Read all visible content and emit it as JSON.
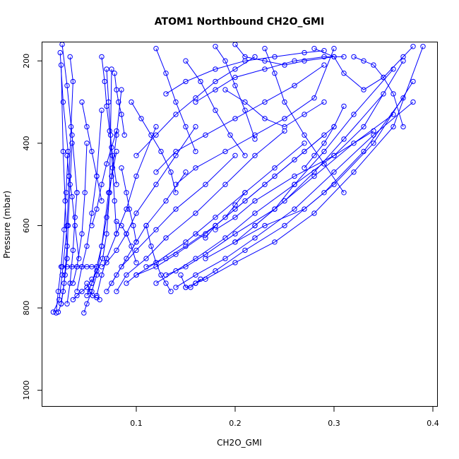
{
  "chart_data": {
    "type": "scatter",
    "title": "ATOM1 Northbound CH2O_GMI",
    "xlabel": "CH2O_GMI",
    "ylabel": "Pressure (mbar)",
    "xlim": [
      0.005,
      0.405
    ],
    "ylim": [
      1040,
      155
    ],
    "y_reversed": true,
    "x_ticks": [
      0.1,
      0.2,
      0.3,
      0.4
    ],
    "x_tick_labels": [
      "0.1",
      "0.2",
      "0.3",
      "0.4"
    ],
    "y_ticks": [
      200,
      400,
      600,
      800,
      1000
    ],
    "y_tick_labels": [
      "200",
      "400",
      "600",
      "800",
      "1000"
    ],
    "grid": false,
    "legend": "none",
    "marker": "open-circle",
    "connected": true,
    "color": "#0000ff",
    "series": [
      {
        "x": [
          0.016,
          0.022,
          0.025,
          0.03,
          0.032,
          0.034,
          0.036,
          0.033
        ],
        "y": [
          810,
          780,
          720,
          600,
          480,
          360,
          250,
          190
        ]
      },
      {
        "x": [
          0.019,
          0.021,
          0.024,
          0.027,
          0.029,
          0.031,
          0.026,
          0.023
        ],
        "y": [
          812,
          760,
          700,
          610,
          520,
          420,
          300,
          180
        ]
      },
      {
        "x": [
          0.021,
          0.024,
          0.027,
          0.03,
          0.028,
          0.026,
          0.024
        ],
        "y": [
          810,
          790,
          740,
          650,
          540,
          420,
          210
        ]
      },
      {
        "x": [
          0.024,
          0.026,
          0.028,
          0.03,
          0.031,
          0.033,
          0.035
        ],
        "y": [
          790,
          760,
          720,
          680,
          600,
          500,
          400
        ]
      },
      {
        "x": [
          0.025,
          0.03,
          0.035,
          0.04,
          0.045,
          0.05,
          0.055,
          0.06
        ],
        "y": [
          700,
          700,
          700,
          700,
          700,
          700,
          700,
          700
        ]
      },
      {
        "x": [
          0.03,
          0.033,
          0.036,
          0.038,
          0.04
        ],
        "y": [
          790,
          740,
          660,
          580,
          520
        ]
      },
      {
        "x": [
          0.036,
          0.04,
          0.045,
          0.048,
          0.05
        ],
        "y": [
          740,
          700,
          620,
          520,
          400
        ]
      },
      {
        "x": [
          0.04,
          0.045,
          0.05,
          0.055,
          0.06,
          0.065
        ],
        "y": [
          760,
          700,
          650,
          570,
          480,
          320
        ]
      },
      {
        "x": [
          0.047,
          0.05,
          0.055,
          0.06,
          0.065,
          0.072,
          0.08
        ],
        "y": [
          812,
          790,
          760,
          720,
          650,
          520,
          420
        ]
      },
      {
        "x": [
          0.05,
          0.055,
          0.06,
          0.065,
          0.07,
          0.075,
          0.08,
          0.085
        ],
        "y": [
          770,
          740,
          700,
          650,
          580,
          480,
          380,
          270
        ]
      },
      {
        "x": [
          0.055,
          0.06,
          0.066,
          0.07,
          0.073,
          0.075
        ],
        "y": [
          740,
          710,
          680,
          620,
          520,
          220
        ]
      },
      {
        "x": [
          0.06,
          0.065,
          0.07,
          0.08,
          0.09,
          0.1,
          0.12
        ],
        "y": [
          770,
          720,
          680,
          620,
          560,
          480,
          360
        ]
      },
      {
        "x": [
          0.065,
          0.07,
          0.08,
          0.09,
          0.1,
          0.12,
          0.14,
          0.16
        ],
        "y": [
          700,
          690,
          660,
          620,
          570,
          500,
          430,
          360
        ]
      },
      {
        "x": [
          0.07,
          0.08,
          0.09,
          0.1,
          0.11,
          0.13,
          0.15
        ],
        "y": [
          760,
          720,
          680,
          640,
          600,
          540,
          470
        ]
      },
      {
        "x": [
          0.075,
          0.085,
          0.1,
          0.12,
          0.14,
          0.17,
          0.2
        ],
        "y": [
          740,
          700,
          660,
          610,
          560,
          500,
          430
        ]
      },
      {
        "x": [
          0.08,
          0.09,
          0.11,
          0.13,
          0.16,
          0.19,
          0.22,
          0.25
        ],
        "y": [
          760,
          720,
          680,
          630,
          570,
          500,
          430,
          370
        ]
      },
      {
        "x": [
          0.09,
          0.1,
          0.12,
          0.15,
          0.18,
          0.21,
          0.24,
          0.27
        ],
        "y": [
          740,
          720,
          690,
          640,
          580,
          520,
          460,
          400
        ]
      },
      {
        "x": [
          0.1,
          0.12,
          0.14,
          0.17,
          0.2,
          0.23,
          0.26,
          0.29
        ],
        "y": [
          720,
          700,
          670,
          620,
          560,
          500,
          440,
          380
        ]
      },
      {
        "x": [
          0.11,
          0.13,
          0.15,
          0.18,
          0.21,
          0.24,
          0.27,
          0.3
        ],
        "y": [
          700,
          680,
          650,
          600,
          540,
          480,
          420,
          360
        ]
      },
      {
        "x": [
          0.12,
          0.14,
          0.16,
          0.19,
          0.22,
          0.26,
          0.3,
          0.34
        ],
        "y": [
          740,
          710,
          680,
          630,
          570,
          500,
          430,
          370
        ]
      },
      {
        "x": [
          0.13,
          0.15,
          0.17,
          0.2,
          0.24,
          0.28,
          0.32,
          0.36
        ],
        "y": [
          720,
          700,
          670,
          620,
          560,
          480,
          400,
          330
        ]
      },
      {
        "x": [
          0.14,
          0.16,
          0.19,
          0.22,
          0.26,
          0.3,
          0.34,
          0.38
        ],
        "y": [
          750,
          720,
          680,
          630,
          560,
          470,
          380,
          300
        ]
      },
      {
        "x": [
          0.15,
          0.17,
          0.2,
          0.24,
          0.28,
          0.32,
          0.36,
          0.39
        ],
        "y": [
          750,
          730,
          690,
          640,
          570,
          470,
          360,
          165
        ]
      },
      {
        "x": [
          0.16,
          0.18,
          0.21,
          0.25,
          0.29,
          0.33,
          0.37
        ],
        "y": [
          740,
          710,
          660,
          600,
          520,
          420,
          290
        ]
      },
      {
        "x": [
          0.17,
          0.2,
          0.23,
          0.27,
          0.3,
          0.34,
          0.38
        ],
        "y": [
          680,
          640,
          600,
          560,
          500,
          400,
          250
        ]
      },
      {
        "x": [
          0.18,
          0.2,
          0.22,
          0.26,
          0.3,
          0.33,
          0.37
        ],
        "y": [
          610,
          580,
          540,
          480,
          430,
          360,
          200
        ]
      },
      {
        "x": [
          0.2,
          0.22,
          0.25,
          0.28,
          0.31,
          0.35
        ],
        "y": [
          640,
          600,
          540,
          470,
          390,
          280
        ]
      },
      {
        "x": [
          0.22,
          0.24,
          0.26,
          0.29,
          0.32,
          0.36
        ],
        "y": [
          600,
          560,
          500,
          420,
          330,
          220
        ]
      },
      {
        "x": [
          0.1,
          0.12,
          0.14,
          0.16,
          0.18,
          0.2,
          0.22
        ],
        "y": [
          430,
          380,
          330,
          290,
          250,
          220,
          190
        ]
      },
      {
        "x": [
          0.12,
          0.14,
          0.17,
          0.2,
          0.23,
          0.26,
          0.29
        ],
        "y": [
          470,
          420,
          380,
          340,
          300,
          260,
          210
        ]
      },
      {
        "x": [
          0.14,
          0.16,
          0.19,
          0.22,
          0.25,
          0.28,
          0.3
        ],
        "y": [
          500,
          460,
          420,
          380,
          340,
          290,
          170
        ]
      },
      {
        "x": [
          0.13,
          0.15,
          0.18,
          0.21,
          0.24,
          0.27,
          0.29
        ],
        "y": [
          280,
          250,
          220,
          200,
          190,
          180,
          175
        ]
      },
      {
        "x": [
          0.16,
          0.18,
          0.2,
          0.23,
          0.26,
          0.29,
          0.31
        ],
        "y": [
          300,
          270,
          240,
          220,
          200,
          190,
          190
        ]
      },
      {
        "x": [
          0.18,
          0.19,
          0.2,
          0.21,
          0.22
        ],
        "y": [
          165,
          200,
          260,
          320,
          390
        ]
      },
      {
        "x": [
          0.23,
          0.24,
          0.25,
          0.27,
          0.29,
          0.31
        ],
        "y": [
          170,
          230,
          300,
          380,
          450,
          520
        ]
      },
      {
        "x": [
          0.28,
          0.3,
          0.31,
          0.33,
          0.35,
          0.37,
          0.38
        ],
        "y": [
          170,
          190,
          230,
          270,
          240,
          190,
          165
        ]
      },
      {
        "x": [
          0.19,
          0.21,
          0.23,
          0.25,
          0.27,
          0.29
        ],
        "y": [
          270,
          300,
          340,
          360,
          330,
          300
        ]
      },
      {
        "x": [
          0.15,
          0.165,
          0.18,
          0.195,
          0.21
        ],
        "y": [
          200,
          250,
          320,
          380,
          430
        ]
      },
      {
        "x": [
          0.12,
          0.13,
          0.14,
          0.15,
          0.16
        ],
        "y": [
          170,
          230,
          300,
          360,
          420
        ]
      },
      {
        "x": [
          0.095,
          0.105,
          0.115,
          0.125,
          0.135,
          0.14
        ],
        "y": [
          300,
          340,
          380,
          420,
          470,
          520
        ]
      },
      {
        "x": [
          0.11,
          0.115,
          0.12,
          0.125,
          0.13,
          0.135
        ],
        "y": [
          600,
          650,
          690,
          720,
          740,
          760
        ]
      },
      {
        "x": [
          0.145,
          0.15,
          0.155,
          0.16,
          0.165
        ],
        "y": [
          720,
          750,
          750,
          740,
          730
        ]
      },
      {
        "x": [
          0.16,
          0.17,
          0.18,
          0.19,
          0.2,
          0.21
        ],
        "y": [
          620,
          630,
          600,
          580,
          550,
          520
        ]
      },
      {
        "x": [
          0.08,
          0.085,
          0.09,
          0.095,
          0.1
        ],
        "y": [
          590,
          600,
          620,
          650,
          690
        ]
      },
      {
        "x": [
          0.07,
          0.072,
          0.074,
          0.076,
          0.078,
          0.08
        ],
        "y": [
          220,
          300,
          380,
          460,
          540,
          620
        ]
      },
      {
        "x": [
          0.065,
          0.068,
          0.07,
          0.073,
          0.076,
          0.08
        ],
        "y": [
          190,
          250,
          310,
          370,
          430,
          500
        ]
      },
      {
        "x": [
          0.078,
          0.08,
          0.082,
          0.085,
          0.088
        ],
        "y": [
          230,
          270,
          300,
          330,
          380
        ]
      },
      {
        "x": [
          0.085,
          0.09,
          0.093,
          0.097,
          0.1
        ],
        "y": [
          460,
          520,
          560,
          600,
          640
        ]
      },
      {
        "x": [
          0.055,
          0.06,
          0.065,
          0.07,
          0.075,
          0.08
        ],
        "y": [
          600,
          560,
          500,
          450,
          410,
          370
        ]
      },
      {
        "x": [
          0.045,
          0.05,
          0.055,
          0.06,
          0.065
        ],
        "y": [
          300,
          360,
          420,
          480,
          540
        ]
      },
      {
        "x": [
          0.025,
          0.03,
          0.035,
          0.04
        ],
        "y": [
          160,
          260,
          380,
          520
        ]
      },
      {
        "x": [
          0.03,
          0.032,
          0.035,
          0.038,
          0.042
        ],
        "y": [
          430,
          480,
          530,
          600,
          680
        ]
      },
      {
        "x": [
          0.05,
          0.053,
          0.056,
          0.06,
          0.063
        ],
        "y": [
          740,
          760,
          770,
          775,
          780
        ]
      },
      {
        "x": [
          0.036,
          0.04,
          0.045,
          0.05,
          0.055
        ],
        "y": [
          780,
          770,
          760,
          750,
          730
        ]
      },
      {
        "x": [
          0.2,
          0.21,
          0.23,
          0.25,
          0.27,
          0.3
        ],
        "y": [
          160,
          190,
          200,
          210,
          200,
          190
        ]
      },
      {
        "x": [
          0.27,
          0.28,
          0.29,
          0.3,
          0.31
        ],
        "y": [
          460,
          430,
          400,
          360,
          310
        ]
      },
      {
        "x": [
          0.32,
          0.33,
          0.34,
          0.35,
          0.36,
          0.37
        ],
        "y": [
          190,
          200,
          210,
          240,
          280,
          360
        ]
      }
    ]
  }
}
